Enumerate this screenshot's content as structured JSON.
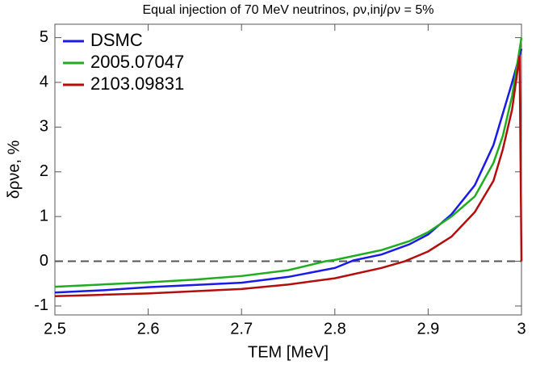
{
  "chart_data": {
    "type": "line",
    "title": "Equal injection of 70 MeV neutrinos, ρν,inj/ρν = 5%",
    "x_label": "TEM [MeV]",
    "y_label": "δρνe, %",
    "xlim": [
      2.5,
      3.0
    ],
    "xticks": [
      2.5,
      2.6,
      2.7,
      2.8,
      2.9,
      3.0
    ],
    "ylim": [
      -1.2,
      5.3
    ],
    "yticks": [
      -1,
      0,
      1,
      2,
      3,
      4,
      5
    ],
    "hline": 0,
    "legend": "upper-left",
    "series": [
      {
        "name": "DSMC",
        "color": "#1a1ae6",
        "x": [
          2.5,
          2.55,
          2.6,
          2.65,
          2.7,
          2.75,
          2.8,
          2.82,
          2.85,
          2.88,
          2.9,
          2.925,
          2.95,
          2.97,
          2.98,
          2.99,
          3.0
        ],
        "values": [
          -0.7,
          -0.65,
          -0.58,
          -0.53,
          -0.48,
          -0.35,
          -0.15,
          0.02,
          0.15,
          0.38,
          0.6,
          1.05,
          1.7,
          2.6,
          3.3,
          4.0,
          4.75
        ]
      },
      {
        "name": "2005.07047",
        "color": "#1fad1f",
        "x": [
          2.5,
          2.55,
          2.6,
          2.65,
          2.7,
          2.75,
          2.79,
          2.8,
          2.85,
          2.88,
          2.9,
          2.925,
          2.95,
          2.97,
          2.98,
          2.99,
          3.0
        ],
        "values": [
          -0.57,
          -0.52,
          -0.47,
          -0.41,
          -0.33,
          -0.2,
          0,
          0.03,
          0.25,
          0.45,
          0.65,
          1.0,
          1.45,
          2.2,
          2.8,
          3.7,
          5.0
        ]
      },
      {
        "name": "2103.09831",
        "color": "#b30d0d",
        "x": [
          2.5,
          2.55,
          2.6,
          2.65,
          2.7,
          2.75,
          2.8,
          2.85,
          2.875,
          2.9,
          2.925,
          2.95,
          2.97,
          2.98,
          2.99,
          2.998,
          3.0
        ],
        "values": [
          -0.78,
          -0.75,
          -0.72,
          -0.67,
          -0.62,
          -0.52,
          -0.38,
          -0.15,
          0,
          0.22,
          0.55,
          1.1,
          1.8,
          2.5,
          3.4,
          4.6,
          0
        ]
      }
    ]
  }
}
